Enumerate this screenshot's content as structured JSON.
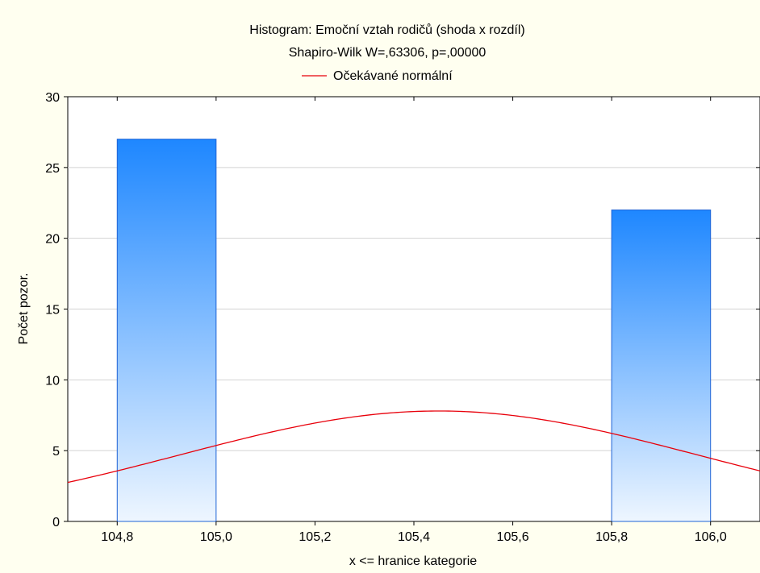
{
  "chart_data": {
    "type": "bar",
    "title": "Histogram: Emoční vztah rodičů (shoda x rozdíl)",
    "subtitle": "Shapiro-Wilk W=,63306, p=,00000",
    "xlabel": "x <= hranice kategorie",
    "ylabel": "Počet pozor.",
    "xlim": [
      104.7,
      106.1
    ],
    "ylim": [
      0,
      30
    ],
    "x_ticks": [
      104.8,
      105.0,
      105.2,
      105.4,
      105.6,
      105.8,
      106.0
    ],
    "x_tick_labels": [
      "104,8",
      "105,0",
      "105,2",
      "105,4",
      "105,6",
      "105,8",
      "106,0"
    ],
    "y_ticks": [
      0,
      5,
      10,
      15,
      20,
      25,
      30
    ],
    "y_tick_labels": [
      "0",
      "5",
      "10",
      "15",
      "20",
      "25",
      "30"
    ],
    "grid": "horizontal",
    "legend": {
      "placement": "top-center",
      "entries": [
        {
          "label": "Očekávané normální",
          "color": "#e8000b"
        }
      ]
    },
    "bars": [
      {
        "bin_start": 104.8,
        "bin_end": 105.0,
        "value": 27
      },
      {
        "bin_start": 105.8,
        "bin_end": 106.0,
        "value": 22
      }
    ],
    "normal_curve": {
      "name": "Očekávané normální",
      "mean": 105.45,
      "sd": 0.52,
      "peak": 7.8
    },
    "colors": {
      "background": "#fffff0",
      "plot_background": "#ffffff",
      "bar_top": "#1e87ff",
      "bar_bottom": "#eef6ff",
      "bar_edge": "#1e63d6",
      "curve": "#e8000b",
      "grid": "#d3d3d3"
    }
  }
}
